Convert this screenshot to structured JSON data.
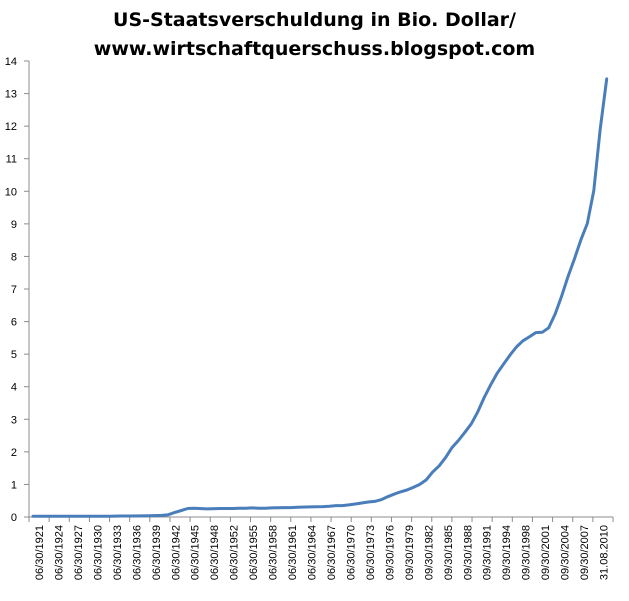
{
  "chart_data": {
    "type": "line",
    "title_lines": [
      "US-Staatsverschuldung in Bio. Dollar/",
      "www.wirtschaftquerschuss.blogspot.com"
    ],
    "xlabel": "",
    "ylabel": "",
    "ylim": [
      0,
      14
    ],
    "y_ticks": [
      "0",
      "1",
      "2",
      "3",
      "4",
      "5",
      "6",
      "7",
      "8",
      "9",
      "10",
      "11",
      "12",
      "13",
      "14"
    ],
    "grid": false,
    "legend": "none",
    "line_color": "#4a7ebb",
    "x_labels": [
      "06/30/1921",
      "06/30/1924",
      "06/30/1927",
      "06/30/1930",
      "06/30/1933",
      "06/30/1936",
      "06/30/1939",
      "06/30/1942",
      "06/30/1945",
      "06/30/1948",
      "06/30/1952",
      "06/30/1955",
      "06/30/1958",
      "06/30/1961",
      "06/30/1964",
      "06/30/1967",
      "06/30/1970",
      "06/30/1973",
      "09/30/1976",
      "09/30/1979",
      "09/30/1982",
      "09/30/1985",
      "09/30/1988",
      "09/30/1991",
      "09/30/1994",
      "09/30/1998",
      "09/30/2001",
      "09/30/2004",
      "09/30/2007",
      "31.08.2010"
    ],
    "series": [
      {
        "values": [
          [
            1921,
            0.02
          ],
          [
            1924,
            0.02
          ],
          [
            1927,
            0.02
          ],
          [
            1930,
            0.02
          ],
          [
            1933,
            0.02
          ],
          [
            1934.5,
            0.03
          ],
          [
            1936,
            0.03
          ],
          [
            1939,
            0.04
          ],
          [
            1941,
            0.05
          ],
          [
            1942,
            0.07
          ],
          [
            1943,
            0.14
          ],
          [
            1944,
            0.2
          ],
          [
            1945,
            0.26
          ],
          [
            1946,
            0.27
          ],
          [
            1948,
            0.25
          ],
          [
            1950,
            0.26
          ],
          [
            1952,
            0.26
          ],
          [
            1953,
            0.27
          ],
          [
            1954,
            0.27
          ],
          [
            1955,
            0.28
          ],
          [
            1956,
            0.27
          ],
          [
            1957,
            0.27
          ],
          [
            1958,
            0.28
          ],
          [
            1960,
            0.29
          ],
          [
            1961,
            0.29
          ],
          [
            1962,
            0.3
          ],
          [
            1964,
            0.31
          ],
          [
            1966,
            0.32
          ],
          [
            1967,
            0.33
          ],
          [
            1968,
            0.35
          ],
          [
            1969,
            0.35
          ],
          [
            1970,
            0.37
          ],
          [
            1971,
            0.4
          ],
          [
            1972,
            0.43
          ],
          [
            1973,
            0.46
          ],
          [
            1974,
            0.48
          ],
          [
            1975,
            0.53
          ],
          [
            1976,
            0.62
          ],
          [
            1977,
            0.7
          ],
          [
            1978,
            0.77
          ],
          [
            1979,
            0.83
          ],
          [
            1980,
            0.91
          ],
          [
            1981,
            1.0
          ],
          [
            1982,
            1.14
          ],
          [
            1983,
            1.38
          ],
          [
            1984,
            1.57
          ],
          [
            1985,
            1.82
          ],
          [
            1986,
            2.13
          ],
          [
            1987,
            2.35
          ],
          [
            1988,
            2.6
          ],
          [
            1989,
            2.86
          ],
          [
            1990,
            3.23
          ],
          [
            1991,
            3.67
          ],
          [
            1992,
            4.06
          ],
          [
            1993,
            4.41
          ],
          [
            1994,
            4.69
          ],
          [
            1995,
            4.97
          ],
          [
            1996,
            5.22
          ],
          [
            1997,
            5.41
          ],
          [
            1998,
            5.53
          ],
          [
            1999,
            5.66
          ],
          [
            2000,
            5.67
          ],
          [
            2001,
            5.81
          ],
          [
            2002,
            6.23
          ],
          [
            2003,
            6.78
          ],
          [
            2004,
            7.38
          ],
          [
            2005,
            7.93
          ],
          [
            2006,
            8.51
          ],
          [
            2007,
            9.01
          ],
          [
            2008,
            10.02
          ],
          [
            2009,
            11.91
          ],
          [
            2010,
            13.45
          ]
        ]
      }
    ]
  }
}
